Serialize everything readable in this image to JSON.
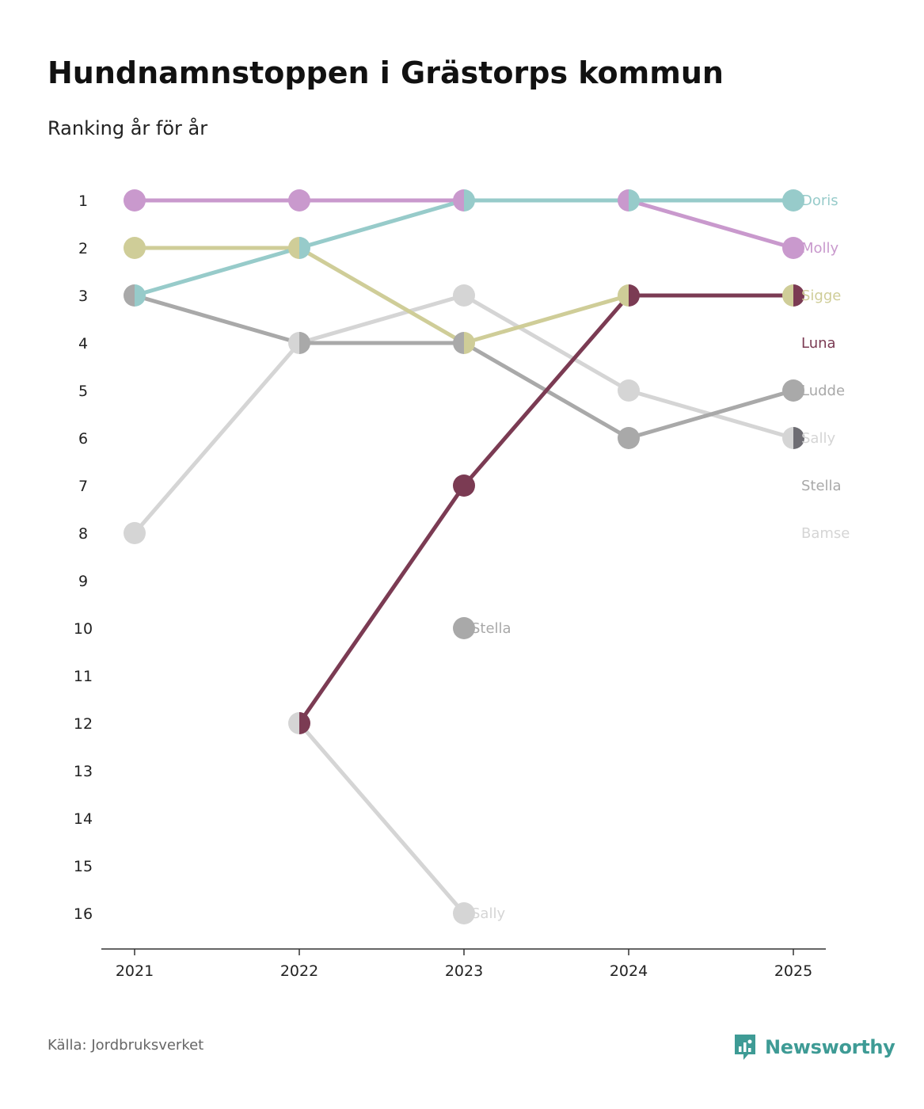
{
  "header": {
    "title": "Hundnamnstoppen i Grästorps kommun",
    "subtitle": "Ranking år för år"
  },
  "footer": {
    "source": "Källa: Jordbruksverket",
    "brand": "Newsworthy",
    "brand_icon": "newsworthy-logo-icon",
    "brand_color": "#3e9b95"
  },
  "chart_data": {
    "type": "line",
    "x": [
      "2021",
      "2022",
      "2023",
      "2024",
      "2025"
    ],
    "y_ticks": [
      1,
      2,
      3,
      4,
      5,
      6,
      7,
      8,
      9,
      10,
      11,
      12,
      13,
      14,
      15,
      16
    ],
    "ylim": [
      16,
      1
    ],
    "y_reversed": true,
    "grid": false,
    "series": [
      {
        "name": "Bamse",
        "color": "#d5d5d5",
        "values": [
          null,
          null,
          null,
          null,
          null
        ],
        "label_rank": 8
      },
      {
        "name": "Stella",
        "color": "#a9a9a9",
        "values": [
          null,
          null,
          10,
          null,
          null
        ],
        "label_rank": 7,
        "point_labels": [
          2
        ]
      },
      {
        "name": "Sally",
        "color": "#d5d5d5",
        "values": [
          8,
          4,
          3,
          5,
          6
        ],
        "label_rank": 6
      },
      {
        "name": "Sally",
        "color": "#d5d5d5",
        "values": [
          null,
          12,
          16,
          null,
          null
        ],
        "point_labels": [
          2
        ]
      },
      {
        "name": "Ludde",
        "color": "#a9a9a9",
        "values": [
          3,
          4,
          4,
          6,
          5
        ],
        "label_rank": 5
      },
      {
        "name": "Sigge",
        "color": "#cfcd98",
        "values": [
          2,
          2,
          4,
          3,
          3
        ],
        "label_rank": 3
      },
      {
        "name": "Molly",
        "color": "#c999cd",
        "values": [
          1,
          1,
          1,
          1,
          2
        ],
        "label_rank": 2
      },
      {
        "name": "Doris",
        "color": "#97cbca",
        "values": [
          3,
          2,
          1,
          1,
          1
        ],
        "label_rank": 1
      },
      {
        "name": "Luna",
        "color": "#7b3b53",
        "values": [
          null,
          12,
          7,
          3,
          3
        ],
        "label_rank": 4
      },
      {
        "name": "",
        "color": "#6e6d73",
        "values": [
          null,
          null,
          null,
          null,
          6
        ]
      }
    ]
  }
}
